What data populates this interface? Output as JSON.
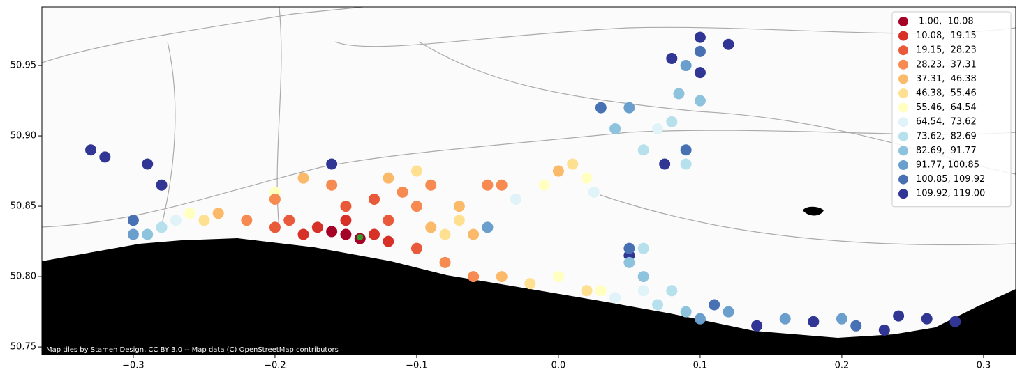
{
  "chart_data": {
    "type": "scatter",
    "attribution": "Map tiles by Stamen Design, CC BY 3.0 -- Map data (C) OpenStreetMap contributors",
    "xlim": [
      -0.3645,
      0.3227
    ],
    "ylim": [
      50.7446,
      50.9916
    ],
    "xticks": [
      {
        "value": -0.3,
        "label": "−0.3"
      },
      {
        "value": -0.2,
        "label": "−0.2"
      },
      {
        "value": -0.1,
        "label": "−0.1"
      },
      {
        "value": 0.0,
        "label": "0.0"
      },
      {
        "value": 0.1,
        "label": "0.1"
      },
      {
        "value": 0.2,
        "label": "0.2"
      },
      {
        "value": 0.3,
        "label": "0.3"
      }
    ],
    "yticks": [
      50.75,
      {
        "value": 50.8,
        "label": "50.80"
      },
      50.85,
      {
        "value": 50.9,
        "label": "50.90"
      },
      50.95
    ],
    "legend_position": "upper right",
    "series": [
      {
        "name": " 1.00,  10.08",
        "color": "#a50026",
        "x": [
          -0.15,
          -0.14,
          -0.16
        ],
        "values": [
          50.83,
          50.827,
          50.832
        ]
      },
      {
        "name": "10.08,  19.15",
        "color": "#d73027",
        "x": [
          -0.17,
          -0.13,
          -0.15,
          -0.12,
          -0.18
        ],
        "values": [
          50.835,
          50.83,
          50.84,
          50.825,
          50.83
        ]
      },
      {
        "name": "19.15,  28.23",
        "color": "#e85a3a",
        "x": [
          -0.19,
          -0.12,
          -0.15,
          -0.1,
          -0.2,
          -0.13
        ],
        "values": [
          50.84,
          50.84,
          50.85,
          50.82,
          50.835,
          50.855
        ]
      },
      {
        "name": "28.23,  37.31",
        "color": "#f68a50",
        "x": [
          -0.22,
          -0.1,
          -0.16,
          -0.08,
          -0.06,
          -0.11,
          -0.09,
          -0.05,
          -0.04,
          -0.2
        ],
        "values": [
          50.84,
          50.85,
          50.865,
          50.81,
          50.8,
          50.86,
          50.865,
          50.865,
          50.865,
          50.855
        ]
      },
      {
        "name": "37.31,  46.38",
        "color": "#fbb96a",
        "x": [
          -0.24,
          -0.07,
          -0.04,
          -0.09,
          -0.18,
          -0.06,
          0.0,
          -0.12
        ],
        "values": [
          50.845,
          50.85,
          50.8,
          50.835,
          50.87,
          50.83,
          50.875,
          50.87
        ]
      },
      {
        "name": "46.38,  55.46",
        "color": "#fee090",
        "x": [
          -0.25,
          -0.08,
          -0.02,
          0.01,
          -0.1,
          -0.07,
          0.02
        ],
        "values": [
          50.84,
          50.83,
          50.795,
          50.88,
          50.875,
          50.84,
          50.79
        ]
      },
      {
        "name": "55.46,  64.54",
        "color": "#ffffbf",
        "x": [
          -0.26,
          0.0,
          0.03,
          -0.01,
          0.02,
          -0.2
        ],
        "values": [
          50.845,
          50.8,
          50.79,
          50.865,
          50.87,
          50.86
        ]
      },
      {
        "name": "64.54,  73.62",
        "color": "#e0f3f8",
        "x": [
          -0.27,
          0.04,
          0.06,
          0.07,
          -0.03,
          0.025
        ],
        "values": [
          50.84,
          50.785,
          50.79,
          50.905,
          50.855,
          50.86
        ]
      },
      {
        "name": "73.62,  82.69",
        "color": "#b7e0ed",
        "x": [
          -0.28,
          0.07,
          0.08,
          0.06,
          0.08,
          0.09,
          0.06
        ],
        "values": [
          50.835,
          50.78,
          50.79,
          50.89,
          50.91,
          50.88,
          50.82
        ]
      },
      {
        "name": "82.69,  91.77",
        "color": "#8ec3de",
        "x": [
          -0.29,
          0.09,
          0.085,
          0.1,
          0.06,
          0.05,
          0.04
        ],
        "values": [
          50.83,
          50.775,
          50.93,
          50.925,
          50.8,
          50.81,
          50.905
        ]
      },
      {
        "name": "91.77, 100.85",
        "color": "#6a9ecc",
        "x": [
          -0.3,
          0.1,
          0.12,
          0.2,
          0.09,
          0.05,
          -0.05,
          0.16
        ],
        "values": [
          50.83,
          50.77,
          50.775,
          50.77,
          50.95,
          50.92,
          50.835,
          50.77
        ]
      },
      {
        "name": "100.85, 109.92",
        "color": "#4871b3",
        "x": [
          -0.3,
          0.11,
          0.21,
          0.1,
          0.03,
          0.09,
          0.05
        ],
        "values": [
          50.84,
          50.78,
          50.765,
          50.96,
          50.92,
          50.89,
          50.82
        ]
      },
      {
        "name": "109.92, 119.00",
        "color": "#313695",
        "x": [
          -0.33,
          -0.32,
          -0.29,
          -0.28,
          0.26,
          0.28,
          0.24,
          0.1,
          0.12,
          0.1,
          0.08,
          0.23,
          0.14,
          -0.16,
          0.05,
          0.075,
          0.18
        ],
        "values": [
          50.89,
          50.885,
          50.88,
          50.865,
          50.77,
          50.768,
          50.772,
          50.97,
          50.965,
          50.945,
          50.955,
          50.762,
          50.765,
          50.88,
          50.815,
          50.88,
          50.768
        ]
      }
    ],
    "highlight": {
      "x": -0.14,
      "y": 50.828,
      "color": "#2ca02c"
    }
  }
}
